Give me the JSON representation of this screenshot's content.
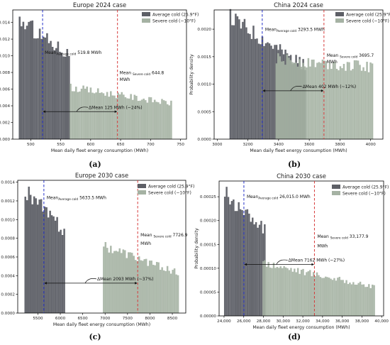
{
  "colors": {
    "average": "#5d5f66",
    "severe": "#a5b2a3",
    "avg_line": "#2330c9",
    "sev_line": "#d63a3a"
  },
  "chart_data": [
    {
      "type": "histogram",
      "title": "Europe 2024 case",
      "xlabel": "Mean daily fleet energy consumption (MWh)",
      "ylabel": "Probability density",
      "xlim": [
        470,
        760
      ],
      "ylim": [
        0,
        0.0155
      ],
      "xticks": [
        "500",
        "550",
        "600",
        "650",
        "700",
        "750"
      ],
      "yticks": [
        "0.000",
        "0.002",
        "0.004",
        "0.006",
        "0.008",
        "0.010",
        "0.012",
        "0.014"
      ],
      "caption": "(a)",
      "series": [
        {
          "name": "Average cold (25.9°F)",
          "range": [
            480,
            565
          ],
          "start": 0.0143,
          "end": 0.0103,
          "mean": 519.8,
          "mean_label": "Mean",
          "mean_sub": "Average cold",
          "mean_value": "519.8 MWh"
        },
        {
          "name": "Severe cold (−10°F)",
          "range": [
            565,
            737
          ],
          "start": 0.0062,
          "end": 0.0043,
          "mean": 644.8,
          "mean_label": "Mean",
          "mean_sub": "Severe cold",
          "mean_value": "644.8",
          "mean_unit": "MWh"
        }
      ],
      "delta_label": "ΔMean 125 MWh (~24%)",
      "delta_y": 0.0033
    },
    {
      "type": "histogram",
      "title": "China 2024 case",
      "xlabel": "Mean daily fleet energy consumption (MWh)",
      "ylabel": "Probability density",
      "xlim": [
        2980,
        4080
      ],
      "ylim": [
        0,
        0.00235
      ],
      "xticks": [
        "3000",
        "3200",
        "3400",
        "3600",
        "3800",
        "4000"
      ],
      "yticks": [
        "0.0000",
        "0.0005",
        "0.0010",
        "0.0015",
        "0.0020"
      ],
      "caption": "(b)",
      "series": [
        {
          "name": "Average cold (25.9°F)",
          "range": [
            3080,
            3580
          ],
          "start": 0.00222,
          "end": 0.00133,
          "mean": 3293.5,
          "mean_label": "Mean",
          "mean_sub": "Average cold",
          "mean_value": "3293.5 MWh"
        },
        {
          "name": "Severe cold (−10°F)",
          "range": [
            3380,
            4020
          ],
          "start": 0.00145,
          "end": 0.00131,
          "mean": 3695.7,
          "mean_label": "Mean",
          "mean_sub": "Severe cold",
          "mean_value": "3695.7",
          "mean_unit": "MWh"
        }
      ],
      "delta_label": "ΔMean 402 MWh (~12%)",
      "delta_y": 0.00088
    },
    {
      "type": "histogram",
      "title": "Europe 2030 case",
      "xlabel": "Mean daily fleet energy consumption (MWh)",
      "ylabel": "Probability density",
      "xlim": [
        5050,
        8800
      ],
      "ylim": [
        0,
        0.00142
      ],
      "xticks": [
        "5500",
        "6000",
        "6500",
        "7000",
        "7500",
        "8000",
        "8500"
      ],
      "yticks": [
        "0.0000",
        "0.0002",
        "0.0004",
        "0.0006",
        "0.0008",
        "0.0010",
        "0.0012",
        "0.0014"
      ],
      "caption": "(c)",
      "series": [
        {
          "name": "Average cold (25.9°F)",
          "range": [
            5200,
            6100
          ],
          "start": 0.00132,
          "end": 0.00087,
          "mean": 5633.5,
          "mean_label": "Mean",
          "mean_sub": "Average cold",
          "mean_value": "5633.5 MWh"
        },
        {
          "name": "Severe cold (−10°F)",
          "range": [
            6950,
            8650
          ],
          "start": 0.00072,
          "end": 0.00043,
          "mean": 7726.9,
          "mean_label": "Mean",
          "mean_sub": "Severe cold",
          "mean_value": "7726.9",
          "mean_unit": "MWh"
        }
      ],
      "delta_label": "ΔMean 2093 MWh (~37%)",
      "delta_y": 0.00032
    },
    {
      "type": "histogram",
      "title": "China 2030 case",
      "xlabel": "Mean daily fleet energy consumption (MWh)",
      "ylabel": "Probability density",
      "xlim": [
        23500,
        40200
      ],
      "ylim": [
        0,
        0.000283
      ],
      "xticks": [
        "24,000",
        "26,000",
        "28,000",
        "30,000",
        "32,000",
        "34,000",
        "36,000",
        "38,000",
        "40,000"
      ],
      "yticks": [
        "0.00000",
        "0.00005",
        "0.00010",
        "0.00015",
        "0.00020",
        "0.00025"
      ],
      "caption": "(d)",
      "series": [
        {
          "name": "Average cold (25.9°F)",
          "range": [
            24000,
            28300
          ],
          "start": 0.000255,
          "end": 0.000185,
          "mean": 26015.0,
          "mean_label": "Mean",
          "mean_sub": "Average cold",
          "mean_value": "26,015.0 MWh"
        },
        {
          "name": "Severe cold (−10°F)",
          "range": [
            27900,
            39300
          ],
          "start": 0.000112,
          "end": 6e-05,
          "mean": 33177.9,
          "mean_label": "Mean",
          "mean_sub": "Severe cold",
          "mean_value": "33,177.9",
          "mean_unit": "MWh"
        }
      ],
      "delta_label": "ΔMean 7162 MWh (~27%)",
      "delta_y": 0.000108
    }
  ]
}
